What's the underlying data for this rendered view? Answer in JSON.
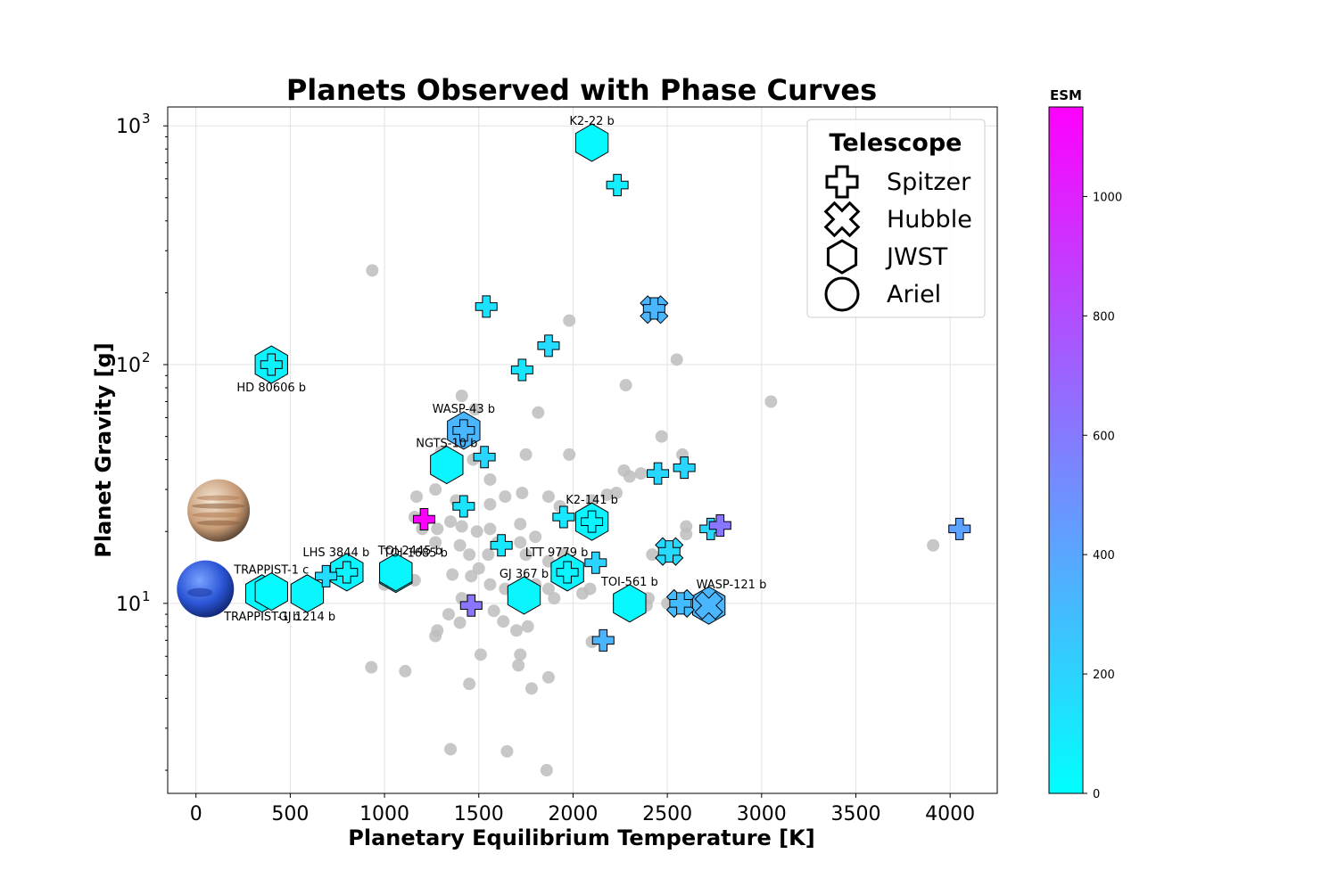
{
  "chart_data": {
    "type": "scatter",
    "title": "Planets Observed with Phase Curves",
    "xlabel": "Planetary Equilibrium Temperature [K]",
    "ylabel": "Planet Gravity [g]",
    "xlim": [
      -150,
      4250
    ],
    "ylim": [
      1.6,
      1200
    ],
    "yscale": "log",
    "grid": true,
    "x_ticks": [
      0,
      500,
      1000,
      1500,
      2000,
      2500,
      3000,
      3500,
      4000
    ],
    "y_ticks": [
      {
        "value": 10,
        "base": "10",
        "exp": "1"
      },
      {
        "value": 100,
        "base": "10",
        "exp": "2"
      },
      {
        "value": 1000,
        "base": "10",
        "exp": "3"
      }
    ],
    "legend": {
      "title": "Telescope",
      "placement": "top-right",
      "entries": [
        {
          "label": "Spitzer",
          "marker": "plus"
        },
        {
          "label": "Hubble",
          "marker": "cross"
        },
        {
          "label": "JWST",
          "marker": "hexagon"
        },
        {
          "label": "Ariel",
          "marker": "circle"
        }
      ]
    },
    "colorbar": {
      "label": "ESM",
      "min": 0,
      "max": 1150,
      "ticks": [
        0,
        200,
        400,
        600,
        800,
        1000
      ],
      "colormap": "cool",
      "color_low": "#00ffff",
      "color_high": "#ff00ff"
    },
    "planet_icons": [
      {
        "name": "jupiter-icon",
        "x": 120,
        "y": 24.5
      },
      {
        "name": "neptune-icon",
        "x": 50,
        "y": 11.5
      }
    ],
    "background_planets": {
      "color": "#bdbdbd",
      "points": [
        [
          935,
          248
        ],
        [
          1410,
          74
        ],
        [
          1480,
          65
        ],
        [
          1980,
          153
        ],
        [
          1815,
          63
        ],
        [
          2280,
          82
        ],
        [
          2550,
          105
        ],
        [
          3050,
          70
        ],
        [
          1980,
          42
        ],
        [
          1750,
          42
        ],
        [
          2470,
          50
        ],
        [
          2580,
          42
        ],
        [
          1300,
          43
        ],
        [
          1470,
          40
        ],
        [
          1560,
          33
        ],
        [
          1170,
          28
        ],
        [
          1270,
          30
        ],
        [
          1380,
          27
        ],
        [
          1560,
          26
        ],
        [
          1640,
          28
        ],
        [
          1730,
          29
        ],
        [
          1870,
          28
        ],
        [
          1930,
          25.5
        ],
        [
          2100,
          27
        ],
        [
          2180,
          28.5
        ],
        [
          2230,
          29
        ],
        [
          2270,
          36
        ],
        [
          2300,
          34
        ],
        [
          2360,
          35
        ],
        [
          1160,
          23
        ],
        [
          1200,
          20.5
        ],
        [
          1280,
          20.5
        ],
        [
          1350,
          22
        ],
        [
          1410,
          21
        ],
        [
          1490,
          20
        ],
        [
          1560,
          20.5
        ],
        [
          1600,
          18
        ],
        [
          1720,
          21.5
        ],
        [
          1800,
          19
        ],
        [
          1270,
          18
        ],
        [
          1400,
          17.5
        ],
        [
          1450,
          16
        ],
        [
          1500,
          14
        ],
        [
          1550,
          16
        ],
        [
          1720,
          18
        ],
        [
          1750,
          16
        ],
        [
          1870,
          15
        ],
        [
          1950,
          16
        ],
        [
          2600,
          21
        ],
        [
          2600,
          19.5
        ],
        [
          2420,
          16
        ],
        [
          1030,
          14.5
        ],
        [
          1000,
          12
        ],
        [
          1100,
          12.5
        ],
        [
          1160,
          12.5
        ],
        [
          1410,
          10.5
        ],
        [
          1460,
          13
        ],
        [
          1560,
          12
        ],
        [
          1640,
          11.5
        ],
        [
          1800,
          12
        ],
        [
          1870,
          11.5
        ],
        [
          1900,
          10.5
        ],
        [
          2050,
          11
        ],
        [
          2090,
          11.5
        ],
        [
          2270,
          10.5
        ],
        [
          2400,
          10.5
        ],
        [
          2500,
          10
        ],
        [
          2390,
          9.8
        ],
        [
          1340,
          9
        ],
        [
          1400,
          8.3
        ],
        [
          1270,
          7.3
        ],
        [
          1280,
          7.7
        ],
        [
          1580,
          9.3
        ],
        [
          1630,
          8.4
        ],
        [
          1700,
          7.7
        ],
        [
          1760,
          8
        ],
        [
          1510,
          6.1
        ],
        [
          1710,
          5.5
        ],
        [
          1720,
          6.1
        ],
        [
          2100,
          6.9
        ],
        [
          930,
          5.4
        ],
        [
          1110,
          5.2
        ],
        [
          1450,
          4.6
        ],
        [
          1780,
          4.4
        ],
        [
          1870,
          4.9
        ],
        [
          1350,
          2.45
        ],
        [
          1650,
          2.4
        ],
        [
          1860,
          2.0
        ],
        [
          3910,
          17.5
        ],
        [
          1740,
          9.9
        ],
        [
          1360,
          13.2
        ]
      ]
    },
    "observed_planets": [
      {
        "telescope": "JWST",
        "x": 2100,
        "y": 850,
        "esm": 30,
        "label": "K2-22 b",
        "label_pos": "above"
      },
      {
        "telescope": "Spitzer",
        "x": 2235,
        "y": 565,
        "esm": 80
      },
      {
        "telescope": "Spitzer",
        "x": 1540,
        "y": 175,
        "esm": 130
      },
      {
        "telescope": "Spitzer",
        "x": 2430,
        "y": 172,
        "esm": 330
      },
      {
        "telescope": "Hubble",
        "x": 2430,
        "y": 170,
        "esm": 330
      },
      {
        "telescope": "Spitzer",
        "x": 1870,
        "y": 120,
        "esm": 160
      },
      {
        "telescope": "Spitzer",
        "x": 1730,
        "y": 95,
        "esm": 120
      },
      {
        "telescope": "JWST",
        "x": 400,
        "y": 100,
        "esm": 60,
        "label": "HD 80606 b",
        "label_pos": "below"
      },
      {
        "telescope": "Spitzer",
        "x": 400,
        "y": 100,
        "esm": 60
      },
      {
        "telescope": "JWST",
        "x": 1420,
        "y": 53,
        "esm": 330,
        "label": "WASP-43 b",
        "label_pos": "above"
      },
      {
        "telescope": "Spitzer",
        "x": 1420,
        "y": 53,
        "esm": 330
      },
      {
        "telescope": "JWST",
        "x": 1330,
        "y": 38,
        "esm": 45,
        "label": "NGTS-10 b",
        "label_pos": "above"
      },
      {
        "telescope": "Spitzer",
        "x": 1530,
        "y": 41,
        "esm": 180
      },
      {
        "telescope": "Spitzer",
        "x": 2450,
        "y": 35,
        "esm": 180
      },
      {
        "telescope": "Spitzer",
        "x": 2590,
        "y": 37,
        "esm": 180
      },
      {
        "telescope": "Spitzer",
        "x": 1420,
        "y": 25.5,
        "esm": 120
      },
      {
        "telescope": "Spitzer",
        "x": 1210,
        "y": 22.5,
        "esm": 1150
      },
      {
        "telescope": "Spitzer",
        "x": 1950,
        "y": 23,
        "esm": 110
      },
      {
        "telescope": "JWST",
        "x": 2100,
        "y": 22,
        "esm": 50,
        "label": "K2-141 b",
        "label_pos": "above"
      },
      {
        "telescope": "Spitzer",
        "x": 2100,
        "y": 22,
        "esm": 50
      },
      {
        "telescope": "Spitzer",
        "x": 2730,
        "y": 20.5,
        "esm": 180
      },
      {
        "telescope": "Spitzer",
        "x": 2780,
        "y": 21.2,
        "esm": 620
      },
      {
        "telescope": "Spitzer",
        "x": 4050,
        "y": 20.5,
        "esm": 420
      },
      {
        "telescope": "Spitzer",
        "x": 1620,
        "y": 17.5,
        "esm": 100
      },
      {
        "telescope": "Hubble",
        "x": 2510,
        "y": 16.5,
        "esm": 170
      },
      {
        "telescope": "Spitzer",
        "x": 2510,
        "y": 16.5,
        "esm": 170
      },
      {
        "telescope": "JWST",
        "x": 800,
        "y": 13.5,
        "esm": 50,
        "label": "LHS 3844 b",
        "label_pos": "above-left"
      },
      {
        "telescope": "Spitzer",
        "x": 800,
        "y": 13.5,
        "esm": 50
      },
      {
        "telescope": "Spitzer",
        "x": 690,
        "y": 13,
        "esm": 160
      },
      {
        "telescope": "JWST",
        "x": 1060,
        "y": 13.3,
        "esm": 60,
        "label": "TOI-1685 b",
        "label_pos": "above-right"
      },
      {
        "telescope": "JWST",
        "x": 1060,
        "y": 13.5,
        "esm": 40,
        "label": "TOI-2445 b",
        "label_pos": "above-right-high"
      },
      {
        "telescope": "JWST",
        "x": 1970,
        "y": 13.5,
        "esm": 45,
        "label": "LTT 9779 b",
        "label_pos": "above-left"
      },
      {
        "telescope": "Spitzer",
        "x": 1970,
        "y": 13.5,
        "esm": 45
      },
      {
        "telescope": "Spitzer",
        "x": 2120,
        "y": 14.8,
        "esm": 200
      },
      {
        "telescope": "JWST",
        "x": 1740,
        "y": 10.8,
        "esm": 40,
        "label": "GJ 367 b",
        "label_pos": "above"
      },
      {
        "telescope": "JWST",
        "x": 350,
        "y": 11,
        "esm": 30,
        "label": "TRAPPIST-1 b",
        "label_pos": "below"
      },
      {
        "telescope": "JWST",
        "x": 400,
        "y": 11.2,
        "esm": 20,
        "label": "TRAPPIST-1 c",
        "label_pos": "above"
      },
      {
        "telescope": "JWST",
        "x": 590,
        "y": 11,
        "esm": 40,
        "label": "GJ 1214 b",
        "label_pos": "below"
      },
      {
        "telescope": "JWST",
        "x": 2300,
        "y": 10,
        "esm": 30,
        "label": "TOI-561 b",
        "label_pos": "above"
      },
      {
        "telescope": "Spitzer",
        "x": 1460,
        "y": 9.8,
        "esm": 620
      },
      {
        "telescope": "Hubble",
        "x": 2570,
        "y": 10,
        "esm": 300
      },
      {
        "telescope": "Spitzer",
        "x": 2570,
        "y": 10,
        "esm": 300
      },
      {
        "telescope": "JWST",
        "x": 2720,
        "y": 9.8,
        "esm": 330,
        "label": "WASP-121 b",
        "label_pos": "above-right"
      },
      {
        "telescope": "Hubble",
        "x": 2720,
        "y": 9.8,
        "esm": 330
      },
      {
        "telescope": "Spitzer",
        "x": 2160,
        "y": 7,
        "esm": 340
      }
    ]
  }
}
